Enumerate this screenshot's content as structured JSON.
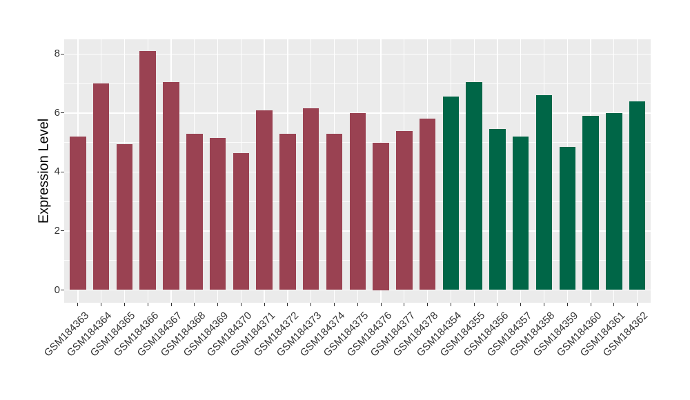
{
  "colors": {
    "page_bg": "#FFFFFF",
    "panel_bg": "#EBEBEB",
    "gridline": "#FFFFFF",
    "bar_red": "#9A4252",
    "bar_green": "#006647",
    "tick_text": "#333333",
    "axis_title_text": "#000000"
  },
  "chart_data": {
    "type": "bar",
    "title": "",
    "xlabel": "",
    "ylabel": "Expression Level",
    "ylim": [
      0,
      8.5
    ],
    "yticks_major": [
      0,
      2,
      4,
      6,
      8
    ],
    "yticks_minor": [
      1,
      3,
      5,
      7
    ],
    "grid": "ggplot-style: gray panel, white major/minor horizontal gridlines, white vertical gridlines at category centers",
    "legend_position": "none",
    "x_tick_label_rotation_deg": 45,
    "series": [
      {
        "name": "group-red",
        "color": "#9A4252",
        "categories": [
          "GSM184363",
          "GSM184364",
          "GSM184365",
          "GSM184366",
          "GSM184367",
          "GSM184368",
          "GSM184369",
          "GSM184370",
          "GSM184371",
          "GSM184372",
          "GSM184373",
          "GSM184374",
          "GSM184375",
          "GSM184376",
          "GSM184377",
          "GSM184378"
        ],
        "values": [
          5.2,
          7.0,
          4.95,
          8.1,
          7.05,
          5.3,
          5.15,
          4.65,
          6.1,
          5.3,
          6.15,
          5.3,
          6.0,
          5.0,
          5.4,
          5.8
        ]
      },
      {
        "name": "group-green",
        "color": "#006647",
        "categories": [
          "GSM184354",
          "GSM184355",
          "GSM184356",
          "GSM184357",
          "GSM184358",
          "GSM184359",
          "GSM184360",
          "GSM184361",
          "GSM184362"
        ],
        "values": [
          6.55,
          7.05,
          5.45,
          5.2,
          6.6,
          4.85,
          5.9,
          6.0,
          6.4
        ]
      }
    ]
  }
}
